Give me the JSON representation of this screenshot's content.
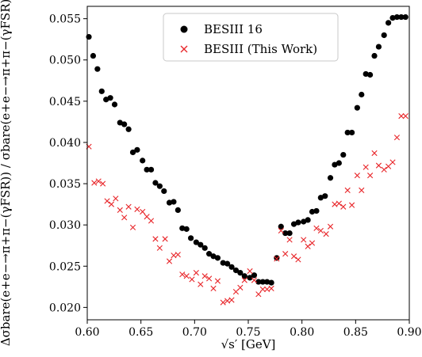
{
  "chart_data": {
    "type": "scatter",
    "xlabel": "√s′ [GeV]",
    "ylabel": "Δσbare(e+e−→π+π−(γFSR)) / σbare(e+e−→π+π−(γFSR))",
    "xlim": [
      0.6,
      0.9
    ],
    "ylim": [
      0.0185,
      0.0565
    ],
    "x_ticks": [
      "0.60",
      "0.65",
      "0.70",
      "0.75",
      "0.80",
      "0.85",
      "0.90"
    ],
    "y_ticks": [
      "0.020",
      "0.025",
      "0.030",
      "0.035",
      "0.040",
      "0.045",
      "0.050",
      "0.055"
    ],
    "x_tick_values": [
      0.6,
      0.65,
      0.7,
      0.75,
      0.8,
      0.85,
      0.9
    ],
    "y_tick_values": [
      0.02,
      0.025,
      0.03,
      0.035,
      0.04,
      0.045,
      0.05,
      0.055
    ],
    "legend_position": "top-center",
    "series": [
      {
        "name": "BESIII 16",
        "marker": "circle",
        "color": "#000000",
        "x": [
          0.6015,
          0.6055,
          0.6095,
          0.6135,
          0.6175,
          0.6215,
          0.6255,
          0.6305,
          0.6345,
          0.6385,
          0.6425,
          0.6465,
          0.6515,
          0.6555,
          0.6595,
          0.6635,
          0.6675,
          0.6715,
          0.6765,
          0.6805,
          0.6845,
          0.6885,
          0.6925,
          0.6965,
          0.7015,
          0.7055,
          0.7095,
          0.7135,
          0.7175,
          0.7215,
          0.7265,
          0.7305,
          0.7345,
          0.7385,
          0.7425,
          0.7465,
          0.7515,
          0.7555,
          0.7595,
          0.7635,
          0.7675,
          0.7715,
          0.7765,
          0.7805,
          0.7845,
          0.7885,
          0.7925,
          0.7965,
          0.8015,
          0.8055,
          0.8095,
          0.8135,
          0.8175,
          0.8215,
          0.8265,
          0.8305,
          0.8345,
          0.8385,
          0.8425,
          0.8465,
          0.8515,
          0.8555,
          0.8595,
          0.8635,
          0.8675,
          0.8715,
          0.8765,
          0.8805,
          0.8845,
          0.8885,
          0.8925,
          0.8965
        ],
        "y": [
          0.0528,
          0.0505,
          0.0489,
          0.0462,
          0.0452,
          0.0454,
          0.0446,
          0.0424,
          0.0422,
          0.0416,
          0.0388,
          0.0391,
          0.0378,
          0.0367,
          0.0367,
          0.0351,
          0.0347,
          0.0341,
          0.0327,
          0.0328,
          0.0318,
          0.0296,
          0.0295,
          0.0284,
          0.0279,
          0.0276,
          0.0272,
          0.0265,
          0.0262,
          0.026,
          0.0254,
          0.0253,
          0.0249,
          0.0245,
          0.0242,
          0.0238,
          0.0236,
          0.0239,
          0.0231,
          0.0231,
          0.0231,
          0.023,
          0.026,
          0.0298,
          0.029,
          0.029,
          0.0301,
          0.0303,
          0.0304,
          0.0306,
          0.0316,
          0.0317,
          0.0333,
          0.0335,
          0.0357,
          0.0373,
          0.0375,
          0.0385,
          0.0412,
          0.0412,
          0.0442,
          0.0458,
          0.0483,
          0.0482,
          0.0505,
          0.0516,
          0.053,
          0.0545,
          0.0551,
          0.0552,
          0.0552,
          0.0552
        ]
      },
      {
        "name": "BESIII (This Work)",
        "marker": "x",
        "color": "#e8262a",
        "x": [
          0.6015,
          0.6065,
          0.6105,
          0.6145,
          0.6185,
          0.6225,
          0.6265,
          0.6305,
          0.6345,
          0.6385,
          0.6425,
          0.6465,
          0.6515,
          0.6555,
          0.6595,
          0.6635,
          0.6675,
          0.6725,
          0.6765,
          0.6805,
          0.6845,
          0.6885,
          0.6925,
          0.6975,
          0.7015,
          0.7055,
          0.7095,
          0.7135,
          0.7175,
          0.7215,
          0.7265,
          0.7305,
          0.7345,
          0.7385,
          0.7425,
          0.7465,
          0.7515,
          0.7555,
          0.7595,
          0.7635,
          0.7675,
          0.7715,
          0.7765,
          0.7805,
          0.7845,
          0.7885,
          0.7925,
          0.7965,
          0.8015,
          0.8055,
          0.8095,
          0.8135,
          0.8175,
          0.8225,
          0.8265,
          0.8305,
          0.8345,
          0.8385,
          0.8425,
          0.8465,
          0.8515,
          0.8555,
          0.8595,
          0.8635,
          0.8675,
          0.8715,
          0.8765,
          0.8805,
          0.8845,
          0.8885,
          0.8925,
          0.8965
        ],
        "y": [
          0.0395,
          0.0351,
          0.0353,
          0.035,
          0.0329,
          0.0325,
          0.0332,
          0.0318,
          0.0309,
          0.0322,
          0.0297,
          0.0319,
          0.0316,
          0.031,
          0.0305,
          0.0283,
          0.0272,
          0.0283,
          0.0256,
          0.0263,
          0.0264,
          0.024,
          0.0238,
          0.0234,
          0.0242,
          0.0228,
          0.0238,
          0.0235,
          0.0223,
          0.0232,
          0.0206,
          0.0208,
          0.0209,
          0.0219,
          0.0224,
          0.0233,
          0.0244,
          0.0233,
          0.0216,
          0.0222,
          0.0222,
          0.0223,
          0.0259,
          0.0293,
          0.0265,
          0.0282,
          0.0262,
          0.0258,
          0.0282,
          0.0274,
          0.0278,
          0.0296,
          0.0293,
          0.0289,
          0.0298,
          0.0325,
          0.0326,
          0.0322,
          0.0342,
          0.0324,
          0.036,
          0.0342,
          0.037,
          0.036,
          0.0387,
          0.0372,
          0.0367,
          0.0371,
          0.0376,
          0.0406,
          0.0432,
          0.0432
        ]
      }
    ]
  }
}
